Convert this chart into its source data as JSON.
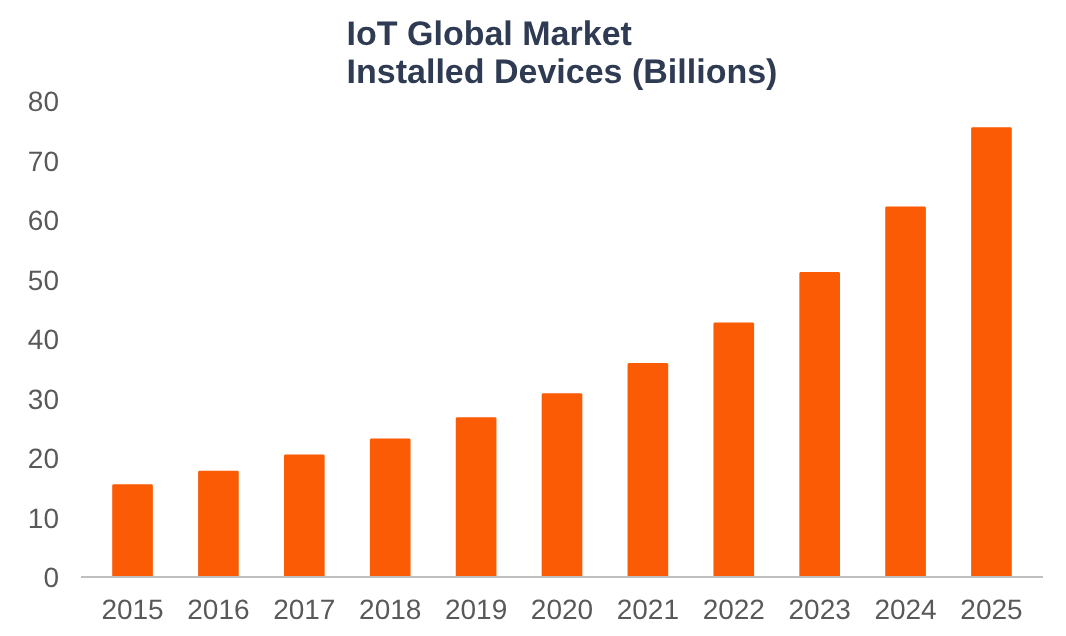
{
  "chart_data": {
    "type": "bar",
    "title": "IoT Global Market\nInstalled Devices (Billions)",
    "categories": [
      "2015",
      "2016",
      "2017",
      "2018",
      "2019",
      "2020",
      "2021",
      "2022",
      "2023",
      "2024",
      "2025"
    ],
    "values": [
      15.4,
      17.7,
      20.4,
      23.1,
      26.7,
      30.7,
      35.8,
      42.6,
      51.1,
      62.1,
      75.4
    ],
    "color": "#fb5b05",
    "ylim": [
      0,
      80
    ],
    "yticks": [
      0,
      10,
      20,
      30,
      40,
      50,
      60,
      70,
      80
    ],
    "grid": false
  }
}
